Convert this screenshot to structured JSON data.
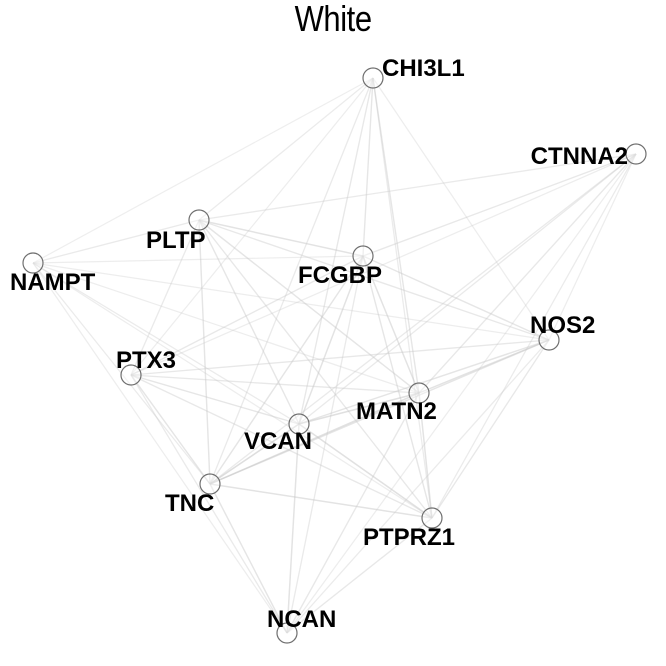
{
  "title": "White",
  "colors": {
    "edge": "#c8c8c8",
    "node_stroke": "#707070",
    "node_fill": "#ffffff",
    "label": "#000000"
  },
  "nodes": [
    {
      "id": "CHI3L1",
      "label": "CHI3L1"
    },
    {
      "id": "CTNNA2",
      "label": "CTNNA2"
    },
    {
      "id": "PLTP",
      "label": "PLTP"
    },
    {
      "id": "FCGBP",
      "label": "FCGBP"
    },
    {
      "id": "NAMPT",
      "label": "NAMPT"
    },
    {
      "id": "NOS2",
      "label": "NOS2"
    },
    {
      "id": "PTX3",
      "label": "PTX3"
    },
    {
      "id": "MATN2",
      "label": "MATN2"
    },
    {
      "id": "VCAN",
      "label": "VCAN"
    },
    {
      "id": "TNC",
      "label": "TNC"
    },
    {
      "id": "PTPRZ1",
      "label": "PTPRZ1"
    },
    {
      "id": "NCAN",
      "label": "NCAN"
    }
  ],
  "edges": [
    [
      "CHI3L1",
      "PLTP",
      0.35
    ],
    [
      "CHI3L1",
      "FCGBP",
      0.5
    ],
    [
      "CHI3L1",
      "NAMPT",
      0.25
    ],
    [
      "CHI3L1",
      "MATN2",
      0.5
    ],
    [
      "CHI3L1",
      "VCAN",
      0.45
    ],
    [
      "CHI3L1",
      "TNC",
      0.4
    ],
    [
      "CHI3L1",
      "NOS2",
      0.3
    ],
    [
      "CHI3L1",
      "PTPRZ1",
      0.35
    ],
    [
      "CHI3L1",
      "PTX3",
      0.3
    ],
    [
      "CTNNA2",
      "PLTP",
      0.4
    ],
    [
      "CTNNA2",
      "FCGBP",
      0.45
    ],
    [
      "CTNNA2",
      "MATN2",
      0.45
    ],
    [
      "CTNNA2",
      "VCAN",
      0.4
    ],
    [
      "CTNNA2",
      "TNC",
      0.4
    ],
    [
      "CTNNA2",
      "PTPRZ1",
      0.35
    ],
    [
      "CTNNA2",
      "NCAN",
      0.3
    ],
    [
      "CTNNA2",
      "PTX3",
      0.3
    ],
    [
      "CTNNA2",
      "NOS2",
      0.3
    ],
    [
      "PLTP",
      "FCGBP",
      0.6
    ],
    [
      "PLTP",
      "NAMPT",
      0.4
    ],
    [
      "PLTP",
      "NOS2",
      0.45
    ],
    [
      "PLTP",
      "MATN2",
      0.55
    ],
    [
      "PLTP",
      "VCAN",
      0.5
    ],
    [
      "PLTP",
      "TNC",
      0.55
    ],
    [
      "PLTP",
      "PTPRZ1",
      0.45
    ],
    [
      "PLTP",
      "PTX3",
      0.4
    ],
    [
      "FCGBP",
      "NOS2",
      0.5
    ],
    [
      "FCGBP",
      "MATN2",
      0.6
    ],
    [
      "FCGBP",
      "VCAN",
      0.6
    ],
    [
      "FCGBP",
      "TNC",
      0.55
    ],
    [
      "FCGBP",
      "PTPRZ1",
      0.5
    ],
    [
      "FCGBP",
      "PTX3",
      0.45
    ],
    [
      "FCGBP",
      "NAMPT",
      0.3
    ],
    [
      "FCGBP",
      "NCAN",
      0.4
    ],
    [
      "NAMPT",
      "NOS2",
      0.3
    ],
    [
      "NAMPT",
      "TNC",
      0.35
    ],
    [
      "NAMPT",
      "NCAN",
      0.3
    ],
    [
      "NAMPT",
      "VCAN",
      0.35
    ],
    [
      "NAMPT",
      "PTPRZ1",
      0.3
    ],
    [
      "NAMPT",
      "MATN2",
      0.3
    ],
    [
      "NOS2",
      "MATN2",
      0.6
    ],
    [
      "NOS2",
      "VCAN",
      0.55
    ],
    [
      "NOS2",
      "TNC",
      0.55
    ],
    [
      "NOS2",
      "PTX3",
      0.45
    ],
    [
      "NOS2",
      "PTPRZ1",
      0.45
    ],
    [
      "NOS2",
      "NCAN",
      0.35
    ],
    [
      "PTX3",
      "MATN2",
      0.45
    ],
    [
      "PTX3",
      "VCAN",
      0.5
    ],
    [
      "PTX3",
      "TNC",
      0.55
    ],
    [
      "PTX3",
      "NCAN",
      0.4
    ],
    [
      "PTX3",
      "PTPRZ1",
      0.45
    ],
    [
      "MATN2",
      "VCAN",
      0.7
    ],
    [
      "MATN2",
      "TNC",
      0.65
    ],
    [
      "MATN2",
      "PTPRZ1",
      0.6
    ],
    [
      "MATN2",
      "NCAN",
      0.45
    ],
    [
      "VCAN",
      "TNC",
      0.75
    ],
    [
      "VCAN",
      "PTPRZ1",
      0.65
    ],
    [
      "VCAN",
      "NCAN",
      0.6
    ],
    [
      "TNC",
      "PTPRZ1",
      0.6
    ],
    [
      "TNC",
      "NCAN",
      0.55
    ],
    [
      "PTPRZ1",
      "NCAN",
      0.45
    ]
  ]
}
